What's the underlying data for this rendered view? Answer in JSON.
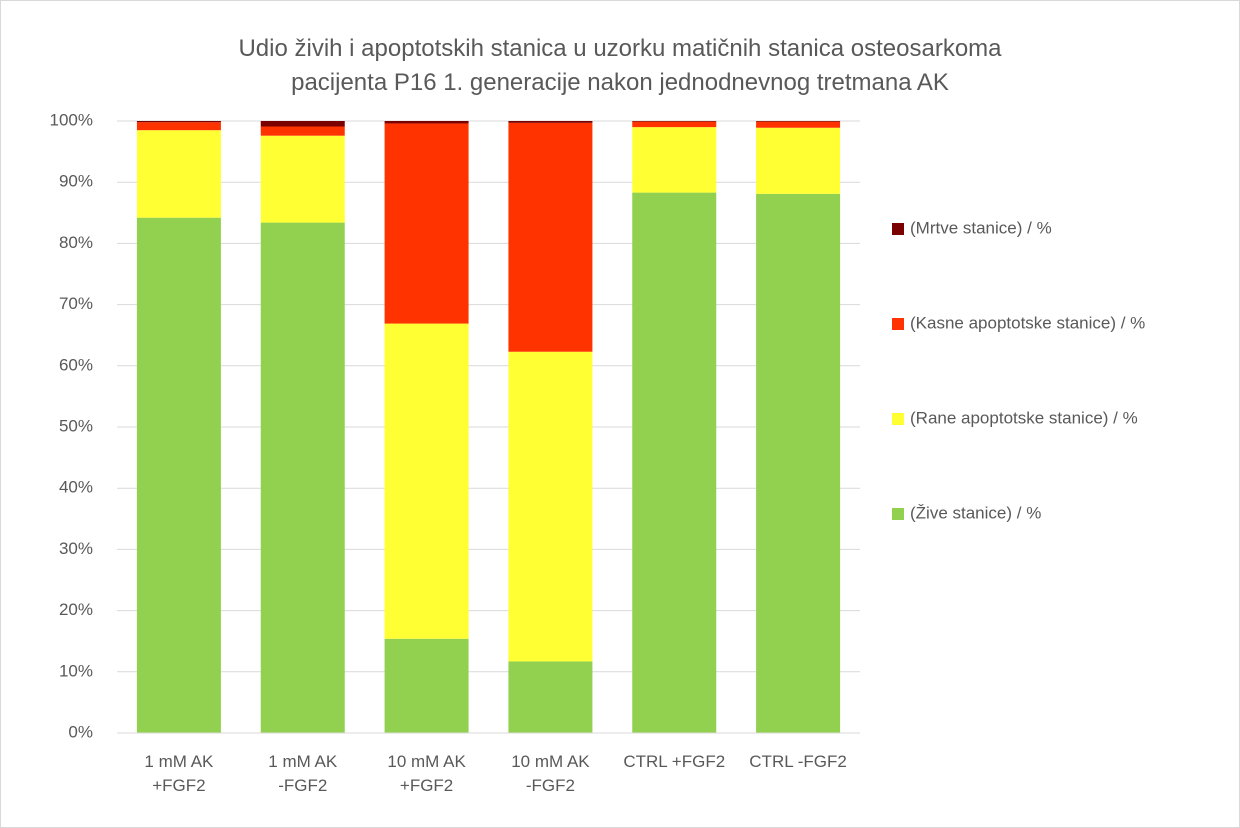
{
  "chart_data": {
    "type": "stacked_bar",
    "title": "Udio živih i apoptotskih stanica u uzorku matičnih stanica osteosarkoma pacijenta P16 1. generacije nakon jednodnevnog tretmana AK",
    "categories": [
      "1 mM AK +FGF2",
      "1 mM AK -FGF2",
      "10 mM AK +FGF2",
      "10 mM AK -FGF2",
      "CTRL +FGF2",
      "CTRL -FGF2"
    ],
    "series": [
      {
        "name": "(Žive stanice) / %",
        "color": "#92d050",
        "values": [
          84.2,
          83.4,
          15.4,
          11.7,
          88.3,
          88.1
        ]
      },
      {
        "name": "(Rane apoptotske stanice) / %",
        "color": "#ffff33",
        "values": [
          14.3,
          14.2,
          51.5,
          50.6,
          10.7,
          10.8
        ]
      },
      {
        "name": "(Kasne apoptotske stanice) / %",
        "color": "#ff3300",
        "values": [
          1.3,
          1.5,
          32.7,
          37.4,
          0.9,
          1.0
        ]
      },
      {
        "name": "(Mrtve stanice) / %",
        "color": "#7b0000",
        "values": [
          0.2,
          0.9,
          0.4,
          0.3,
          0.1,
          0.1
        ]
      }
    ],
    "ylim": [
      0,
      100
    ],
    "yticks": [
      {
        "value": 0,
        "label": "0%"
      },
      {
        "value": 10,
        "label": "10%"
      },
      {
        "value": 20,
        "label": "20%"
      },
      {
        "value": 30,
        "label": "30%"
      },
      {
        "value": 40,
        "label": "40%"
      },
      {
        "value": 50,
        "label": "50%"
      },
      {
        "value": 60,
        "label": "60%"
      },
      {
        "value": 70,
        "label": "70%"
      },
      {
        "value": 80,
        "label": "80%"
      },
      {
        "value": 90,
        "label": "90%"
      },
      {
        "value": 100,
        "label": "100%"
      }
    ],
    "grid": true,
    "legend": "right"
  }
}
